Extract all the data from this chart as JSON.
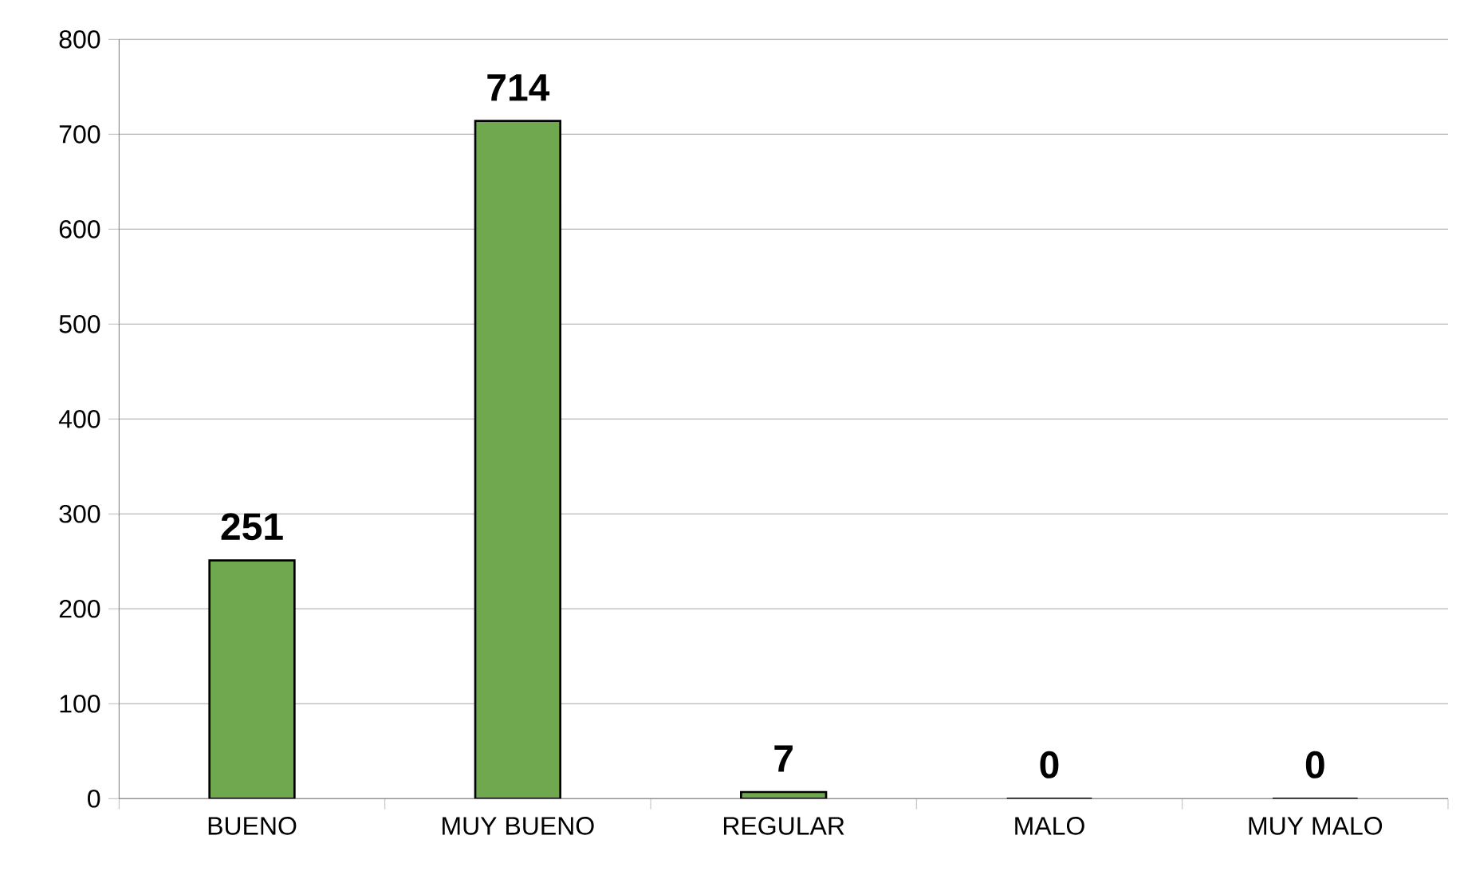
{
  "chart_data": {
    "type": "bar",
    "categories": [
      "BUENO",
      "MUY BUENO",
      "REGULAR",
      "MALO",
      "MUY MALO"
    ],
    "values": [
      251,
      714,
      7,
      0,
      0
    ],
    "value_labels": [
      "251",
      "714",
      "7",
      "0",
      "0"
    ],
    "color": "#6fa84e",
    "ylim": [
      0,
      800
    ],
    "yticks": [
      0,
      100,
      200,
      300,
      400,
      500,
      600,
      700,
      800
    ],
    "grid": "y"
  }
}
